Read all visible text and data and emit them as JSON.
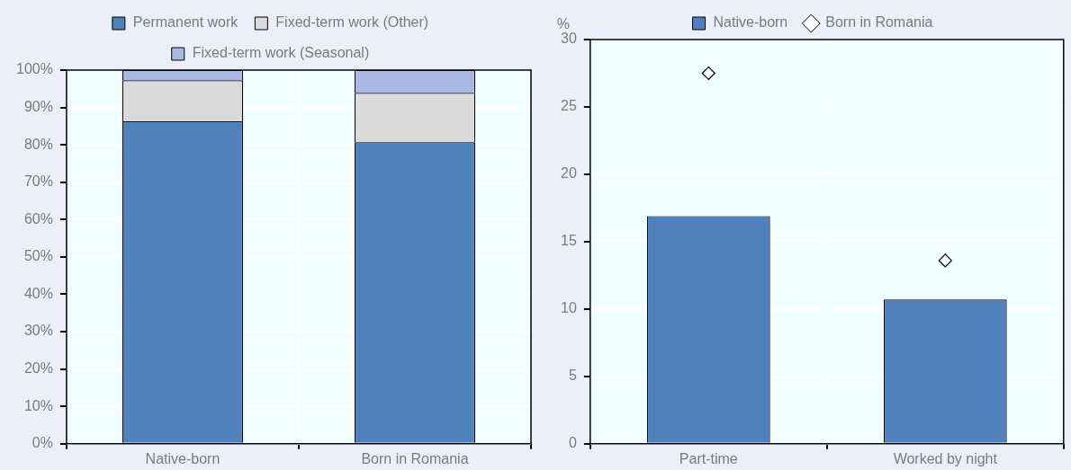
{
  "chart_data": [
    {
      "type": "bar",
      "stacked": true,
      "categories": [
        "Native-born",
        "Born in Romania"
      ],
      "series": [
        {
          "name": "Permanent work",
          "color": "#4f81bd",
          "values": [
            86.3,
            80.7
          ]
        },
        {
          "name": "Fixed-term work (Other)",
          "color": "#dadada",
          "values": [
            11.0,
            13.2
          ]
        },
        {
          "name": "Fixed-term work (Seasonal)",
          "color": "#a7b9e3",
          "values": [
            2.7,
            6.1
          ]
        }
      ],
      "ylim": [
        0,
        100
      ],
      "yticks": [
        {
          "value": 0,
          "label": "0%"
        },
        {
          "value": 10,
          "label": "10%"
        },
        {
          "value": 20,
          "label": "20%"
        },
        {
          "value": 30,
          "label": "30%"
        },
        {
          "value": 40,
          "label": "40%"
        },
        {
          "value": 50,
          "label": "50%"
        },
        {
          "value": 60,
          "label": "60%"
        },
        {
          "value": 70,
          "label": "70%"
        },
        {
          "value": 80,
          "label": "80%"
        },
        {
          "value": 90,
          "label": "90%"
        },
        {
          "value": 100,
          "label": "100%"
        }
      ],
      "grid": true,
      "legend": "top"
    },
    {
      "type": "bar",
      "categories": [
        "Part-time",
        "Worked by night"
      ],
      "ylabel": "%",
      "series": [
        {
          "name": "Native-born",
          "color": "#4f81bd",
          "values": [
            16.9,
            10.7
          ]
        },
        {
          "name": "Born in Romania",
          "type": "scatter",
          "color": "#ffffff",
          "x": [
            "Part-time",
            "Worked by night"
          ],
          "values": [
            27.5,
            13.6
          ]
        }
      ],
      "marker": "diamond",
      "ylim": [
        0,
        30
      ],
      "yticks": [
        0,
        5,
        10,
        15,
        20,
        25,
        30
      ],
      "grid": true,
      "legend": "top"
    }
  ]
}
